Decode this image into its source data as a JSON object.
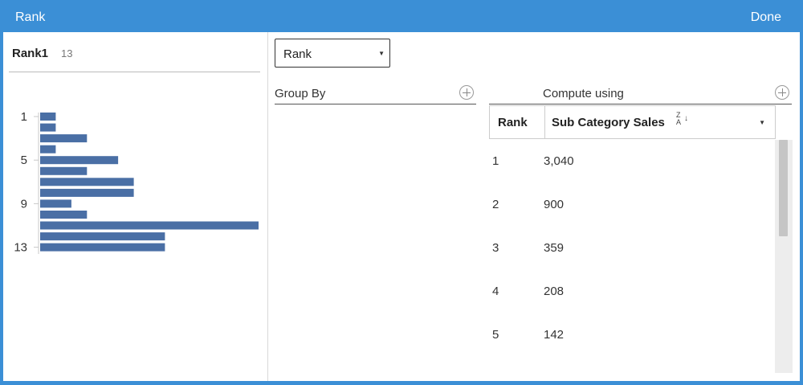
{
  "window": {
    "title": "Rank",
    "done_label": "Done"
  },
  "field": {
    "name": "Rank1",
    "count": "13"
  },
  "histogram": {
    "ticks": [
      "1",
      "5",
      "9",
      "13"
    ],
    "bar_color": "#4a6fa5",
    "values": [
      1,
      1,
      3,
      1,
      5,
      3,
      6,
      6,
      2,
      3,
      14,
      8,
      8
    ]
  },
  "rank_type": {
    "selected": "Rank"
  },
  "group_by": {
    "label": "Group By"
  },
  "compute_using": {
    "label": "Compute using"
  },
  "table": {
    "col_rank": "Rank",
    "col_sort": "Sub Category Sales",
    "sort_glyph_top": "Z",
    "sort_glyph_bottom": "A",
    "rows": [
      {
        "rank": "1",
        "value": "3,040"
      },
      {
        "rank": "2",
        "value": "900"
      },
      {
        "rank": "3",
        "value": "359"
      },
      {
        "rank": "4",
        "value": "208"
      },
      {
        "rank": "5",
        "value": "142"
      }
    ]
  }
}
